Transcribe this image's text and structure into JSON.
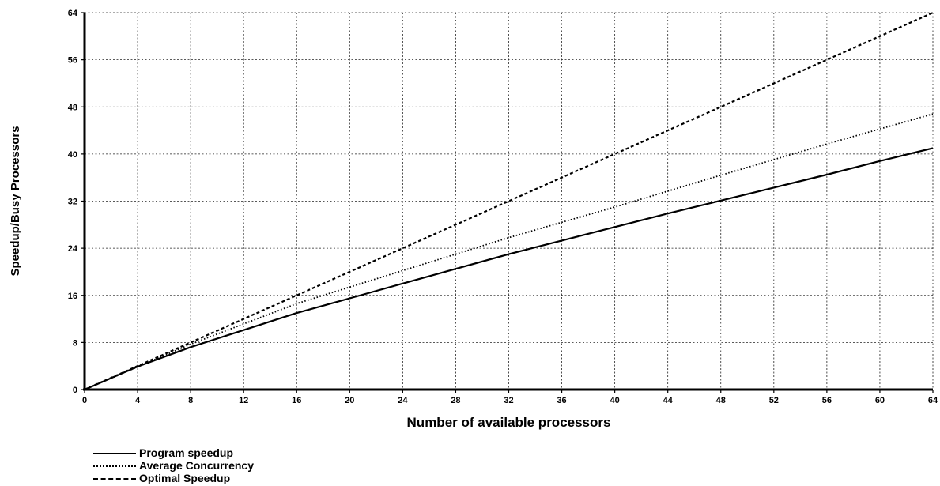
{
  "chart_data": {
    "type": "line",
    "title": "",
    "xlabel": "Number of available processors",
    "ylabel": "Speedup/Busy Processors",
    "xlim": [
      0,
      64
    ],
    "ylim": [
      0,
      64
    ],
    "xticks": [
      0,
      4,
      8,
      12,
      16,
      20,
      24,
      28,
      32,
      36,
      40,
      44,
      48,
      52,
      56,
      60,
      64
    ],
    "yticks": [
      0,
      8,
      16,
      24,
      32,
      40,
      48,
      56,
      64
    ],
    "grid": true,
    "legend_position": "bottom-left",
    "series": [
      {
        "name": "Program speedup",
        "style": "solid",
        "x": [
          0,
          4,
          8,
          12,
          16,
          20,
          24,
          28,
          32,
          36,
          40,
          44,
          48,
          52,
          56,
          60,
          64
        ],
        "y": [
          0,
          3.9,
          7.2,
          10.1,
          13.0,
          15.5,
          18.0,
          20.5,
          23.0,
          25.3,
          27.6,
          29.9,
          32.1,
          34.3,
          36.5,
          38.8,
          41.0
        ]
      },
      {
        "name": "Average Concurrency",
        "style": "dotted",
        "x": [
          0,
          8,
          16,
          24,
          32,
          40,
          48,
          56,
          64
        ],
        "y": [
          0,
          7.7,
          14.6,
          20.2,
          25.8,
          31.0,
          36.4,
          41.7,
          46.8
        ]
      },
      {
        "name": "Optimal Speedup",
        "style": "dashed",
        "x": [
          0,
          64
        ],
        "y": [
          0,
          64
        ]
      }
    ]
  }
}
